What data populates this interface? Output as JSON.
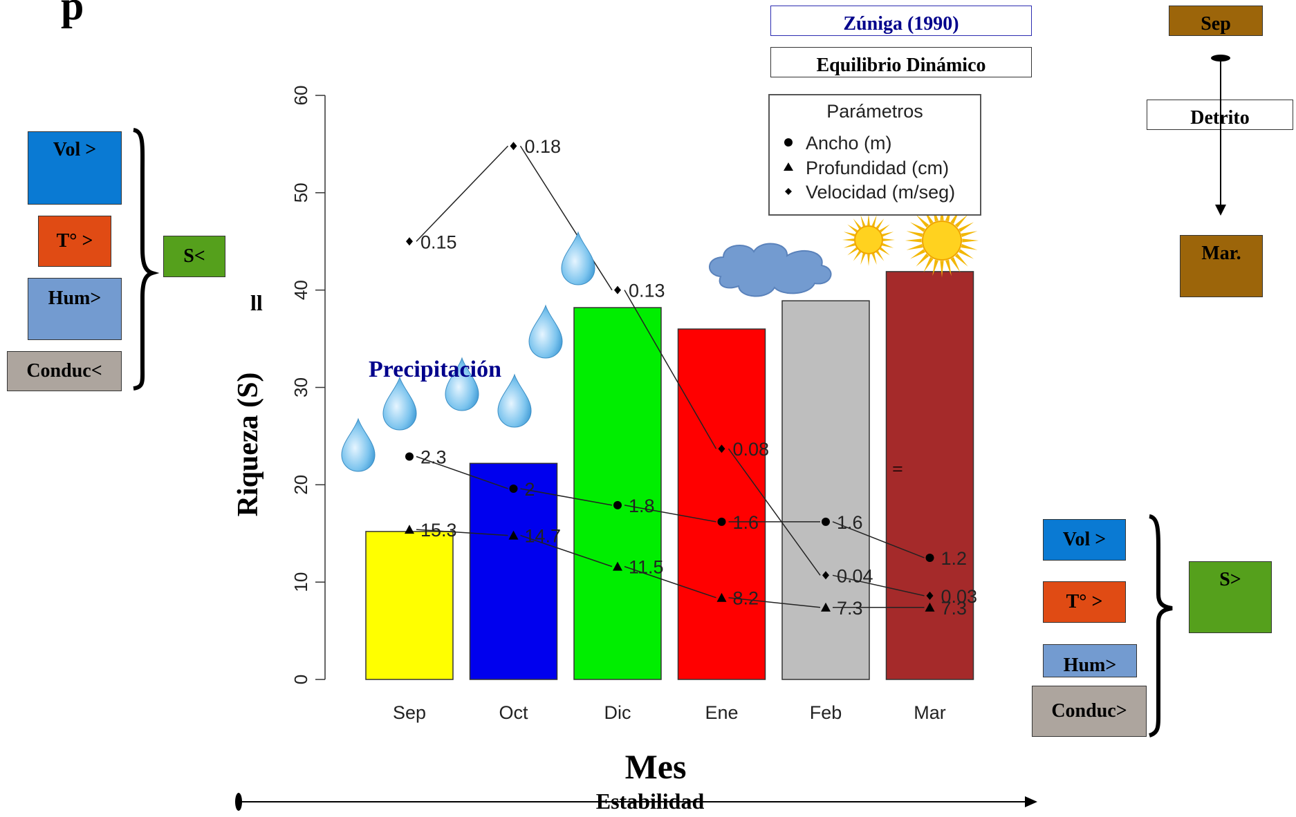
{
  "chart_data": {
    "type": "bar",
    "categories": [
      "Sep",
      "Oct",
      "Dic",
      "Ene",
      "Feb",
      "Mar"
    ],
    "values": [
      15.2,
      22.2,
      38.2,
      36.0,
      38.9,
      41.9
    ],
    "bar_colors": [
      "#ffff00",
      "#0000ee",
      "#00ee00",
      "#ff0000",
      "#bebebe",
      "#a52a2a"
    ],
    "ylabel": "Riqueza (S)",
    "xlabel": "Mes",
    "ylim": [
      0,
      60
    ],
    "yticks": [
      0,
      10,
      20,
      30,
      40,
      50,
      60
    ],
    "grid": false,
    "legend": {
      "title": "Parámetros",
      "placement": "top-right",
      "entries": [
        "Ancho (m)",
        "Profundidad (cm)",
        "Velocidad (m/seg)"
      ]
    },
    "series": [
      {
        "name": "Ancho (m)",
        "marker": "circle",
        "points": [
          {
            "x": "Sep",
            "y": 22.9,
            "label": "2.3"
          },
          {
            "x": "Oct",
            "y": 19.6,
            "label": "2"
          },
          {
            "x": "Dic",
            "y": 17.9,
            "label": "1.8"
          },
          {
            "x": "Ene",
            "y": 16.2,
            "label": "1.6"
          },
          {
            "x": "Feb",
            "y": 16.2,
            "label": "1.6"
          },
          {
            "x": "Mar",
            "y": 12.5,
            "label": "1.2"
          }
        ]
      },
      {
        "name": "Profundidad (cm)",
        "marker": "triangle",
        "points": [
          {
            "x": "Sep",
            "y": 15.4,
            "label": "15.3"
          },
          {
            "x": "Oct",
            "y": 14.8,
            "label": "14.7"
          },
          {
            "x": "Dic",
            "y": 11.6,
            "label": "11.5"
          },
          {
            "x": "Ene",
            "y": 8.4,
            "label": "8.2"
          },
          {
            "x": "Feb",
            "y": 7.4,
            "label": "7.3"
          },
          {
            "x": "Mar",
            "y": 7.4,
            "label": "7.3"
          }
        ]
      },
      {
        "name": "Velocidad (m/seg)",
        "marker": "diamond",
        "points": [
          {
            "x": "Sep",
            "y": 45.0,
            "label": "0.15"
          },
          {
            "x": "Oct",
            "y": 54.8,
            "label": "0.18"
          },
          {
            "x": "Dic",
            "y": 40.0,
            "label": "0.13"
          },
          {
            "x": "Ene",
            "y": 23.7,
            "label": "0.08"
          },
          {
            "x": "Feb",
            "y": 10.7,
            "label": "0.04"
          },
          {
            "x": "Mar",
            "y": 8.6,
            "label": "0.03"
          }
        ]
      }
    ],
    "annotations": {
      "precipitation": "Precipitación",
      "ll": "ll",
      "equal": "=",
      "stability": "Estabilidad"
    }
  },
  "top_citation": "Zúniga (1990)",
  "top_subtitle": "Equilibrio Dinámico",
  "corner_fragment": "p",
  "left_group": {
    "items": [
      {
        "label": "Vol >",
        "color": "#0a7ad3"
      },
      {
        "label": "T° >",
        "color": "#e04b14"
      },
      {
        "label": "Hum>",
        "color": "#739bd0"
      },
      {
        "label": "Conduc<",
        "color": "#ada59e"
      }
    ],
    "result": {
      "label": "S<",
      "color": "#55a01c"
    }
  },
  "right_group": {
    "items": [
      {
        "label": "Vol >",
        "color": "#0a7ad3"
      },
      {
        "label": "T° >",
        "color": "#e04b14"
      },
      {
        "label": "Hum>",
        "color": "#739bd0"
      },
      {
        "label": "Conduc>",
        "color": "#ada59e"
      }
    ],
    "result": {
      "label": "S>",
      "color": "#55a01c"
    }
  },
  "right_flow": {
    "start": {
      "label": "Sep",
      "color": "#9c650a"
    },
    "middle": "Detrito",
    "end": {
      "label": "Mar.",
      "color": "#9c650a"
    }
  }
}
